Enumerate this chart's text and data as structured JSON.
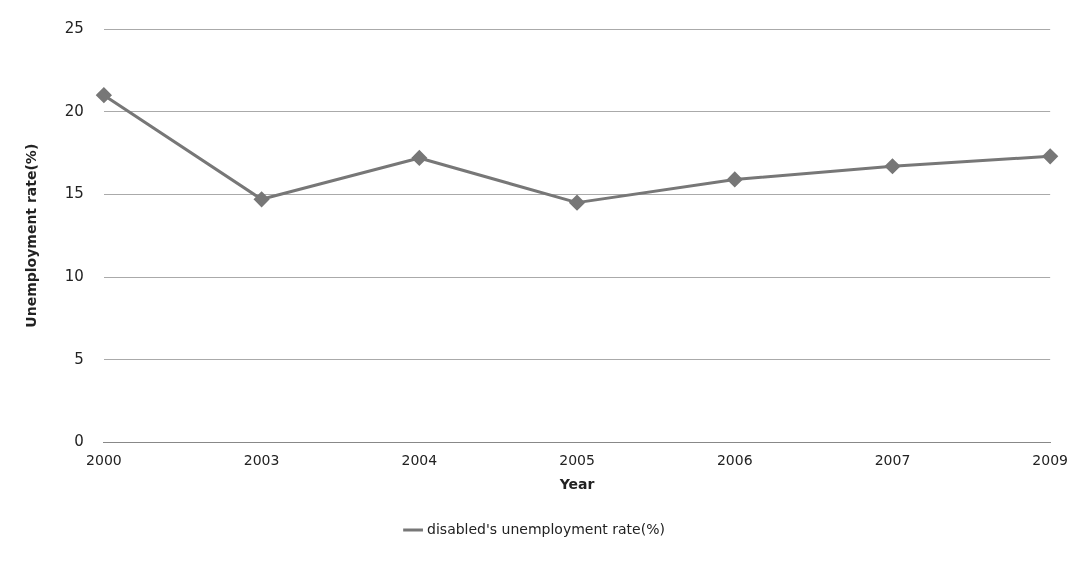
{
  "chart_data": {
    "type": "line",
    "xlabel": "Year",
    "ylabel": "Unemployment rate(%)",
    "categories": [
      "2000",
      "2003",
      "2004",
      "2005",
      "2006",
      "2007",
      "2009"
    ],
    "series": [
      {
        "name": "disabled's unemployment rate(%)",
        "color": "#777777",
        "values": [
          21.0,
          14.7,
          17.2,
          14.5,
          15.9,
          16.7,
          17.3
        ]
      }
    ],
    "ylim": [
      0,
      25
    ],
    "yticks": [
      0,
      5,
      10,
      15,
      20,
      25
    ],
    "grid": "y",
    "legend": "bottom",
    "marker": "diamond"
  }
}
